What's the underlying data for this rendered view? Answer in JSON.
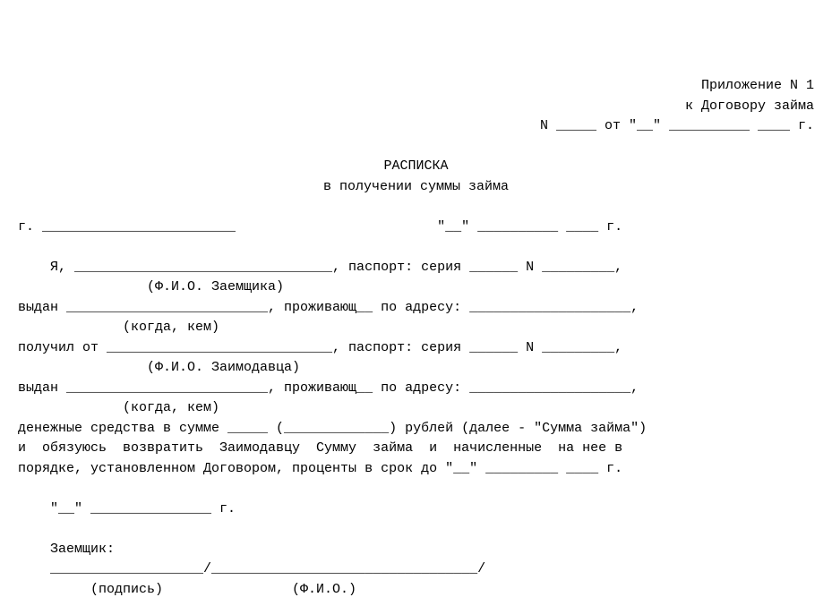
{
  "header": {
    "app_line1": "Приложение N 1",
    "app_line2": "к Договору займа",
    "contract_line": "N _____ от \"__\" __________ ____ г."
  },
  "title": {
    "line1": "РАСПИСКА",
    "line2": "в получении суммы займа"
  },
  "body": {
    "city_date": "г. ________________________                         \"__\" __________ ____ г.",
    "l1": "    Я, ________________________________, паспорт: серия ______ N _________,",
    "l1_hint": "                (Ф.И.О. Заемщика)",
    "l2": "выдан _________________________, проживающ__ по адресу: ____________________,",
    "l2_hint": "             (когда, кем)",
    "l3": "получил от ____________________________, паспорт: серия ______ N _________,",
    "l3_hint": "                (Ф.И.О. Заимодавца)",
    "l4": "выдан _________________________, проживающ__ по адресу: ____________________,",
    "l4_hint": "             (когда, кем)",
    "l5": "денежные средства в сумме _____ (_____________) рублей (далее - \"Сумма займа\")",
    "l6": "и  обязуюсь  возвратить  Заимодавцу  Сумму  займа  и  начисленные  на нее в",
    "l7": "порядке, установленном Договором, проценты в срок до \"__\" _________ ____ г.",
    "date2": "    \"__\" _______________ г.",
    "signer": "    Заемщик:",
    "sign_line": "    ___________________/_________________________________/",
    "sign_hint": "         (подпись)                (Ф.И.О.)"
  }
}
